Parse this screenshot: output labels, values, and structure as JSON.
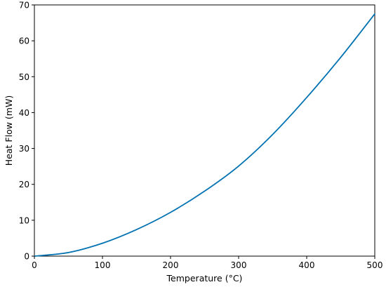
{
  "chart_data": {
    "type": "line",
    "title": "",
    "xlabel": "Temperature (°C)",
    "ylabel": "Heat Flow (mW)",
    "xlim": [
      0,
      500
    ],
    "ylim": [
      0,
      70
    ],
    "x_ticks": [
      0,
      100,
      200,
      300,
      400,
      500
    ],
    "y_ticks": [
      0,
      10,
      20,
      30,
      40,
      50,
      60,
      70
    ],
    "x_tick_labels": [
      "0",
      "100",
      "200",
      "300",
      "400",
      "500"
    ],
    "y_tick_labels": [
      "0",
      "10",
      "20",
      "30",
      "40",
      "50",
      "60",
      "70"
    ],
    "grid": false,
    "color": "#0072b2",
    "series": [
      {
        "x": [
          0,
          50,
          100,
          150,
          200,
          250,
          300,
          350,
          400,
          450,
          500
        ],
        "values": [
          0,
          1.0,
          3.6,
          7.4,
          12.2,
          18.1,
          25.1,
          33.9,
          44.2,
          55.4,
          67.5
        ]
      }
    ]
  }
}
